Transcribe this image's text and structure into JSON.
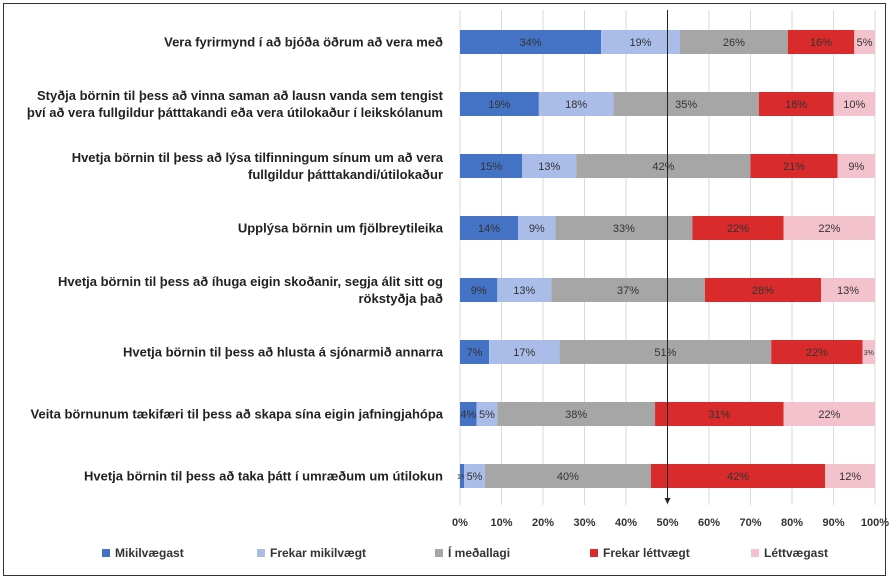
{
  "chart_data": {
    "type": "stacked_bar_horizontal",
    "categories": [
      "Vera fyrirmynd í að bjóða öðrum að vera með",
      "Styðja börnin til þess að vinna saman að lausn vanda sem tengist því að vera fullgildur þátttakandi eða vera útilokaður í leikskólanum",
      "Hvetja börnin til þess að lýsa tilfinningum sínum um að vera fullgildur þátttakandi/útilokaður",
      "Upplýsa börnin um fjölbreytileika",
      "Hvetja börnin til þess að íhuga eigin skoðanir, segja álit sitt og rökstyðja það",
      "Hvetja börnin til þess að hlusta á sjónarmið annarra",
      "Veita börnunum tækifæri til þess að skapa sína eigin jafningjahópa",
      "Hvetja börnin til þess að taka þátt í umræðum um útilokun"
    ],
    "series": [
      {
        "name": "Mikilvægast",
        "color": "#4472c4",
        "values": [
          34,
          19,
          15,
          14,
          9,
          7,
          4,
          1
        ],
        "value_labels": [
          "34%",
          "19%",
          "15%",
          "14%",
          "9%",
          "7%",
          "4%",
          "1%"
        ]
      },
      {
        "name": "Frekar mikilvægt",
        "color": "#a9bde8",
        "values": [
          19,
          18,
          13,
          9,
          13,
          17,
          5,
          5
        ],
        "value_labels": [
          "19%",
          "18%",
          "13%",
          "9%",
          "13%",
          "17%",
          "5%",
          "5%"
        ]
      },
      {
        "name": "Í meðallagi",
        "color": "#a6a6a6",
        "values": [
          26,
          35,
          42,
          33,
          37,
          51,
          38,
          40
        ],
        "value_labels": [
          "26%",
          "35%",
          "42%",
          "33%",
          "37%",
          "51%",
          "38%",
          "40%"
        ]
      },
      {
        "name": "Frekar léttvægt",
        "color": "#d92b2b",
        "values": [
          16,
          18,
          21,
          22,
          28,
          22,
          31,
          42
        ],
        "value_labels": [
          "16%",
          "18%",
          "21%",
          "22%",
          "28%",
          "22%",
          "31%",
          "42%"
        ]
      },
      {
        "name": "Léttvægast",
        "color": "#f4c2cc",
        "values": [
          5,
          10,
          9,
          22,
          13,
          3,
          22,
          12
        ],
        "value_labels": [
          "5%",
          "10%",
          "9%",
          "22%",
          "13%",
          "3%",
          "22%",
          "12%"
        ]
      }
    ],
    "xlim": [
      0,
      100
    ],
    "xticks": [
      {
        "value": 0,
        "label": "0%"
      },
      {
        "value": 10,
        "label": "10%"
      },
      {
        "value": 20,
        "label": "20%"
      },
      {
        "value": 30,
        "label": "30%"
      },
      {
        "value": 40,
        "label": "40%"
      },
      {
        "value": 50,
        "label": "50%"
      },
      {
        "value": 60,
        "label": "60%"
      },
      {
        "value": 70,
        "label": "70%"
      },
      {
        "value": 80,
        "label": "80%"
      },
      {
        "value": 90,
        "label": "90%"
      },
      {
        "value": 100,
        "label": "100%"
      }
    ],
    "reference_line": 50,
    "grid": true,
    "legend": "bottom"
  }
}
